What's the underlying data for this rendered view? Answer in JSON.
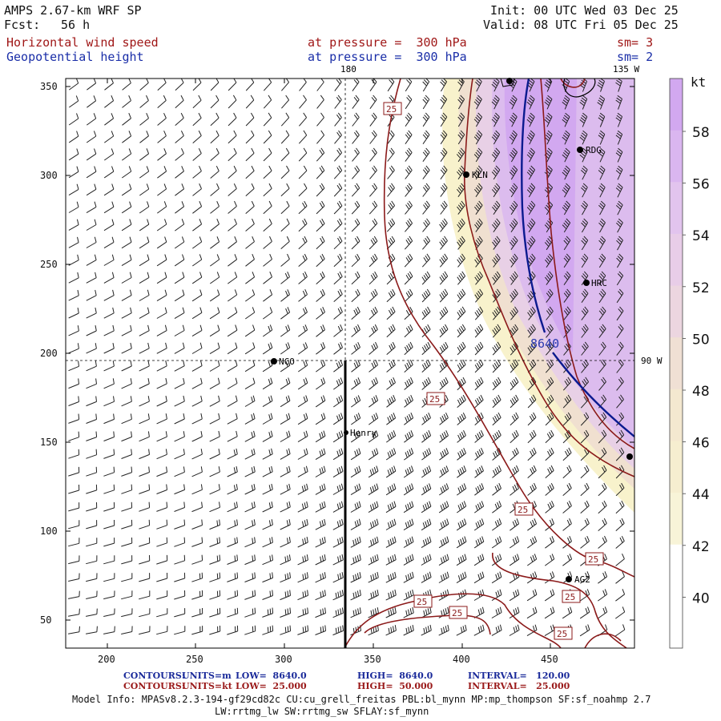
{
  "header": {
    "model": "AMPS 2.67-km WRF SP",
    "fcst_label": "Fcst:",
    "fcst_value": "56 h",
    "init": "Init: 00 UTC Wed 03 Dec 25",
    "valid": "Valid: 08 UTC Fri 05 Dec 25",
    "field1_name": "Horizontal wind speed",
    "field1_level": "at pressure =  300 hPa",
    "field1_sm": "sm= 3",
    "field2_name": "Geopotential height",
    "field2_level": "at pressure =  300 hPa",
    "field2_sm": "sm= 2"
  },
  "map": {
    "x_ticks": [
      "200",
      "250",
      "300",
      "350",
      "400",
      "450"
    ],
    "y_ticks": [
      "350",
      "300",
      "250",
      "200",
      "150",
      "100",
      "50"
    ],
    "lon_labels": {
      "top_180": "180",
      "top_135w": "135 W",
      "right_90w": "90 W"
    },
    "stations": [
      "NCO",
      "Henry",
      "KLN",
      "RDG",
      "HRC",
      "AG2"
    ],
    "height_contour_label": "8640",
    "wind_contour_labels": [
      "25",
      "25",
      "25",
      "25",
      "25",
      "25",
      "25",
      "25"
    ]
  },
  "colorbar": {
    "unit": "kt",
    "labels": [
      "58",
      "56",
      "54",
      "52",
      "50",
      "48",
      "46",
      "44",
      "42",
      "40"
    ],
    "colors": [
      "#d2a8f0",
      "#dab6f0",
      "#e2c4ee",
      "#e8cde8",
      "#ecd6e0",
      "#f0e0d4",
      "#f4e8d0",
      "#f6eed0",
      "#f8f4d8",
      "#ffffff"
    ]
  },
  "footer": {
    "c1_label": "CONTOURS:",
    "c1_units": "UNITS=m",
    "c1_low": "LOW=  8640.0",
    "c1_high": "HIGH=  8640.0",
    "c1_interval": "INTERVAL=   120.00",
    "c2_label": "CONTOURS:",
    "c2_units": "UNITS=kt",
    "c2_low": "LOW=  25.000",
    "c2_high": "HIGH=  50.000",
    "c2_interval": "INTERVAL=   25.000",
    "model_info_1": "Model Info: MPASv8.2.3-194-gf29cd82c CU:cu_grell_freitas PBL:bl_mynn MP:mp_thompson SF:sf_noahmp 2.7",
    "model_info_2": "LW:rrtmg_lw SW:rrtmg_sw SFLAY:sf_mynn"
  }
}
